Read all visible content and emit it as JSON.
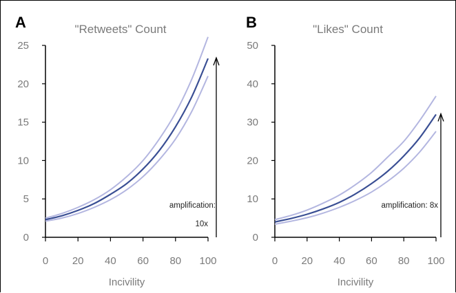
{
  "chart_data": [
    {
      "type": "line",
      "panel_letter": "A",
      "title": "\"Retweets\" Count",
      "xlabel": "Incivility",
      "ylabel": "",
      "xlim": [
        0,
        100
      ],
      "ylim": [
        0,
        25
      ],
      "xticks": [
        "0",
        "20",
        "40",
        "60",
        "80",
        "100"
      ],
      "yticks": [
        "0",
        "5",
        "10",
        "15",
        "20",
        "25"
      ],
      "x": [
        0,
        10,
        20,
        30,
        40,
        50,
        60,
        70,
        80,
        90,
        100
      ],
      "series": [
        {
          "role": "upper",
          "values": [
            2.5,
            3.1,
            3.9,
            4.9,
            6.2,
            7.9,
            10.0,
            12.8,
            16.2,
            20.6,
            26.1
          ]
        },
        {
          "role": "mean",
          "values": [
            2.3,
            2.8,
            3.5,
            4.4,
            5.6,
            7.0,
            8.9,
            11.3,
            14.4,
            18.3,
            23.3
          ]
        },
        {
          "role": "lower",
          "values": [
            2.1,
            2.5,
            3.1,
            3.9,
            4.9,
            6.2,
            7.9,
            10.1,
            12.8,
            16.4,
            21.0
          ]
        }
      ],
      "annotation": {
        "line1": "amplification:",
        "line2": "10x"
      },
      "arrow_range": [
        0,
        23.3
      ],
      "grid": false
    },
    {
      "type": "line",
      "panel_letter": "B",
      "title": "\"Likes\" Count",
      "xlabel": "Incivility",
      "ylabel": "",
      "xlim": [
        0,
        100
      ],
      "ylim": [
        0,
        50
      ],
      "xticks": [
        "0",
        "20",
        "40",
        "60",
        "80",
        "100"
      ],
      "yticks": [
        "0",
        "10",
        "20",
        "30",
        "40",
        "50"
      ],
      "x": [
        0,
        10,
        20,
        30,
        40,
        50,
        60,
        70,
        80,
        90,
        100
      ],
      "series": [
        {
          "role": "upper",
          "values": [
            4.6,
            5.7,
            7.1,
            8.9,
            11.0,
            13.7,
            16.9,
            20.9,
            25.0,
            30.5,
            36.8
          ]
        },
        {
          "role": "mean",
          "values": [
            4.0,
            4.9,
            6.0,
            7.4,
            9.1,
            11.3,
            14.0,
            17.2,
            21.2,
            26.0,
            32.0
          ]
        },
        {
          "role": "lower",
          "values": [
            3.4,
            4.2,
            5.1,
            6.3,
            7.8,
            9.6,
            11.8,
            14.6,
            18.0,
            22.3,
            27.6
          ]
        }
      ],
      "annotation": {
        "line1": "amplification: 8x",
        "line2": ""
      },
      "arrow_range": [
        0,
        32.0
      ],
      "grid": false
    }
  ]
}
